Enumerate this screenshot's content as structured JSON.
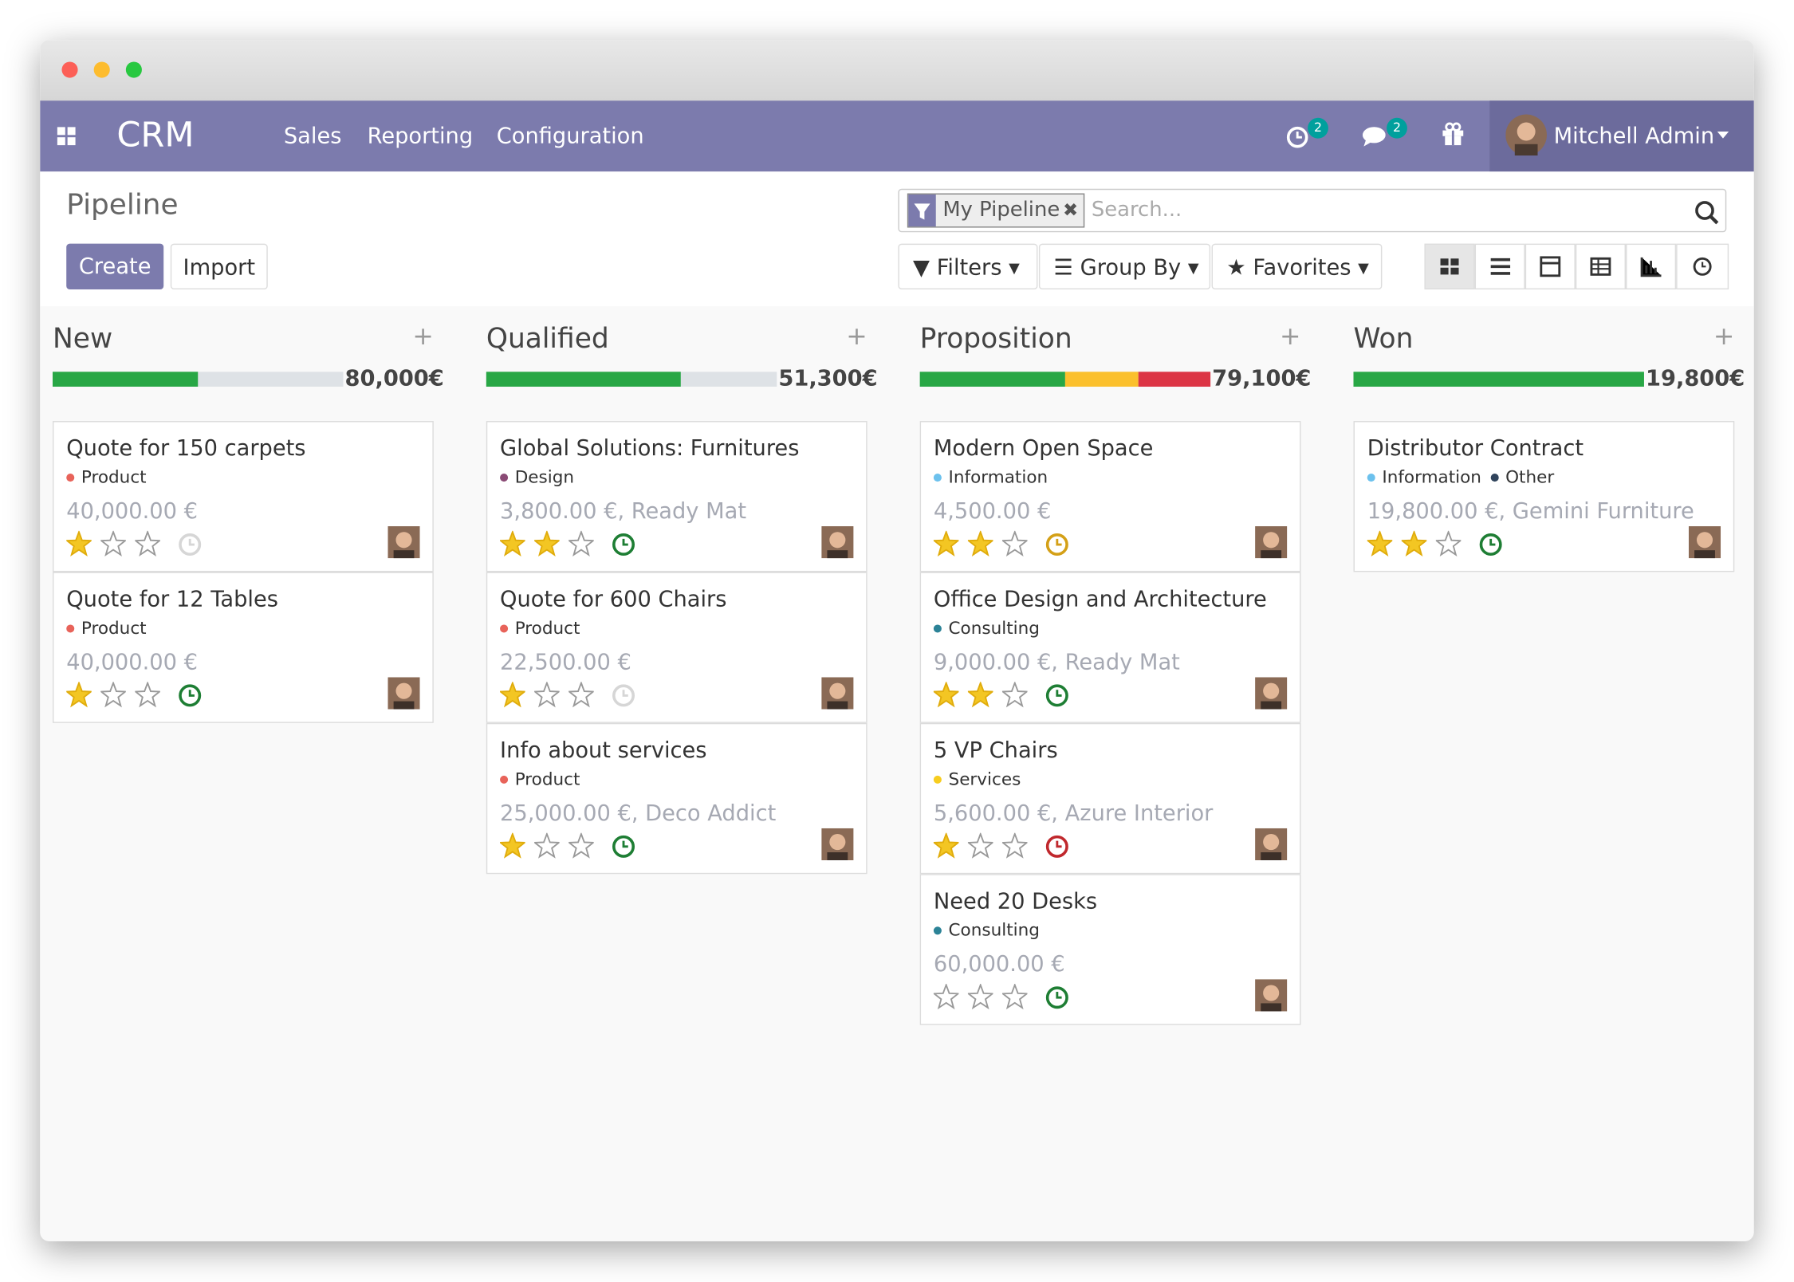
{
  "window": {
    "app": "CRM",
    "menu": [
      "Sales",
      "Reporting",
      "Configuration"
    ],
    "activity_badge": "2",
    "message_badge": "2",
    "user": "Mitchell Admin"
  },
  "control_panel": {
    "breadcrumb": "Pipeline",
    "buttons": [
      "Create",
      "Import"
    ],
    "facet": "My Pipeline",
    "search_placeholder": "Search...",
    "search_options": [
      "Filters",
      "Group By",
      "Favorites"
    ]
  },
  "columns": [
    {
      "title": "New",
      "total": "80,000€",
      "progress": [
        {
          "color": "#28a745",
          "percent": 50
        }
      ],
      "cards": [
        {
          "title": "Quote for 150 carpets",
          "tags": [
            {
              "name": "Product",
              "color": "#e8635a"
            }
          ],
          "amount": "40,000.00 €",
          "priority": 1,
          "activity_color": "#d6d6d6"
        },
        {
          "title": "Quote for 12 Tables",
          "tags": [
            {
              "name": "Product",
              "color": "#e8635a"
            }
          ],
          "amount": "40,000.00 €",
          "priority": 1,
          "activity_color": "#1e7e34"
        }
      ]
    },
    {
      "title": "Qualified",
      "total": "51,300€",
      "progress": [
        {
          "color": "#28a745",
          "percent": 67
        }
      ],
      "cards": [
        {
          "title": "Global Solutions: Furnitures",
          "tags": [
            {
              "name": "Design",
              "color": "#8a4a75"
            }
          ],
          "amount": "3,800.00 €, Ready Mat",
          "priority": 2,
          "activity_color": "#1e7e34"
        },
        {
          "title": "Quote for 600 Chairs",
          "tags": [
            {
              "name": "Product",
              "color": "#e8635a"
            }
          ],
          "amount": "22,500.00 €",
          "priority": 1,
          "activity_color": "#d6d6d6"
        },
        {
          "title": "Info about services",
          "tags": [
            {
              "name": "Product",
              "color": "#e8635a"
            }
          ],
          "amount": "25,000.00 €, Deco Addict",
          "priority": 1,
          "activity_color": "#1e7e34"
        }
      ]
    },
    {
      "title": "Proposition",
      "total": "79,100€",
      "progress": [
        {
          "color": "#28a745",
          "percent": 50
        },
        {
          "color": "#fbc02d",
          "percent": 25
        },
        {
          "color": "#dc3545",
          "percent": 25
        }
      ],
      "cards": [
        {
          "title": "Modern Open Space",
          "tags": [
            {
              "name": "Information",
              "color": "#6cc1ed"
            }
          ],
          "amount": "4,500.00 €",
          "priority": 2,
          "activity_color": "#d4a017"
        },
        {
          "title": "Office Design and Architecture",
          "tags": [
            {
              "name": "Consulting",
              "color": "#2c8397"
            }
          ],
          "amount": "9,000.00 €, Ready Mat",
          "priority": 2,
          "activity_color": "#1e7e34"
        },
        {
          "title": "5 VP Chairs",
          "tags": [
            {
              "name": "Services",
              "color": "#f7cd1f"
            }
          ],
          "amount": "5,600.00 €, Azure Interior",
          "priority": 1,
          "activity_color": "#c0282d"
        },
        {
          "title": "Need 20 Desks",
          "tags": [
            {
              "name": "Consulting",
              "color": "#2c8397"
            }
          ],
          "amount": "60,000.00 €",
          "priority": 0,
          "activity_color": "#1e7e34"
        }
      ]
    },
    {
      "title": "Won",
      "total": "19,800€",
      "progress": [
        {
          "color": "#28a745",
          "percent": 100
        }
      ],
      "cards": [
        {
          "title": "Distributor Contract",
          "tags": [
            {
              "name": "Information",
              "color": "#6cc1ed"
            },
            {
              "name": "Other",
              "color": "#30445c"
            }
          ],
          "amount": "19,800.00 €, Gemini Furniture",
          "priority": 2,
          "activity_color": "#1e7e34"
        }
      ]
    }
  ]
}
